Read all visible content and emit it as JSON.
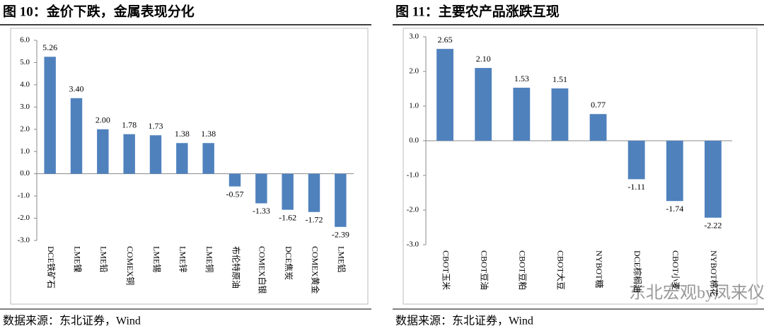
{
  "chart_data": [
    {
      "type": "bar",
      "title": "图 10：金价下跌，金属表现分化",
      "categories": [
        "DCE铁矿石",
        "LME镍",
        "LME铅",
        "COMEX铜",
        "LME锡",
        "LME锌",
        "LME铜",
        "布伦特原油",
        "COMEX白银",
        "DCE焦炭",
        "COMEX黄金",
        "LME铝"
      ],
      "values": [
        5.26,
        3.4,
        2.0,
        1.78,
        1.73,
        1.38,
        1.38,
        -0.57,
        -1.33,
        -1.62,
        -1.72,
        -2.39
      ],
      "value_labels": [
        "5.26",
        "3.40",
        "2.00",
        "1.78",
        "1.73",
        "1.38",
        "1.38",
        "-0.57",
        "-1.33",
        "-1.62",
        "-1.72",
        "-2.39"
      ],
      "color": "#4f81bd",
      "ylim": [
        -3,
        6
      ],
      "yticks": [
        {
          "value": 6,
          "label": "6.0"
        },
        {
          "value": 5,
          "label": "5.0"
        },
        {
          "value": 4,
          "label": "4.0"
        },
        {
          "value": 3,
          "label": "3.0"
        },
        {
          "value": 2,
          "label": "2.0"
        },
        {
          "value": 1,
          "label": "1.0"
        },
        {
          "value": 0,
          "label": "0.0"
        },
        {
          "value": -1,
          "label": "-1.0"
        },
        {
          "value": -2,
          "label": "-2.0"
        },
        {
          "value": -3,
          "label": "-3.0"
        }
      ],
      "source": "数据来源：东北证券，Wind"
    },
    {
      "type": "bar",
      "title": "图 11：主要农产品涨跌互现",
      "categories": [
        "CBOT玉米",
        "CBOT豆油",
        "CBOT豆粕",
        "CBOT大豆",
        "NYBOT糖",
        "DCE棕榈油",
        "CBOT小麦",
        "NYBOT棉花"
      ],
      "values": [
        2.65,
        2.1,
        1.53,
        1.51,
        0.77,
        -1.11,
        -1.74,
        -2.22
      ],
      "value_labels": [
        "2.65",
        "2.10",
        "1.53",
        "1.51",
        "0.77",
        "-1.11",
        "-1.74",
        "-2.22"
      ],
      "color": "#4f81bd",
      "ylim": [
        -3,
        3
      ],
      "yticks": [
        {
          "value": 3,
          "label": "3.0"
        },
        {
          "value": 2,
          "label": "2.0"
        },
        {
          "value": 1,
          "label": "1.0"
        },
        {
          "value": 0,
          "label": "0.0"
        },
        {
          "value": -1,
          "label": "-1.0"
        },
        {
          "value": -2,
          "label": "-2.0"
        },
        {
          "value": -3,
          "label": "-3.0"
        }
      ],
      "source": "数据来源：东北证券，Wind"
    }
  ],
  "watermark": "东北宏观by凤来仪"
}
